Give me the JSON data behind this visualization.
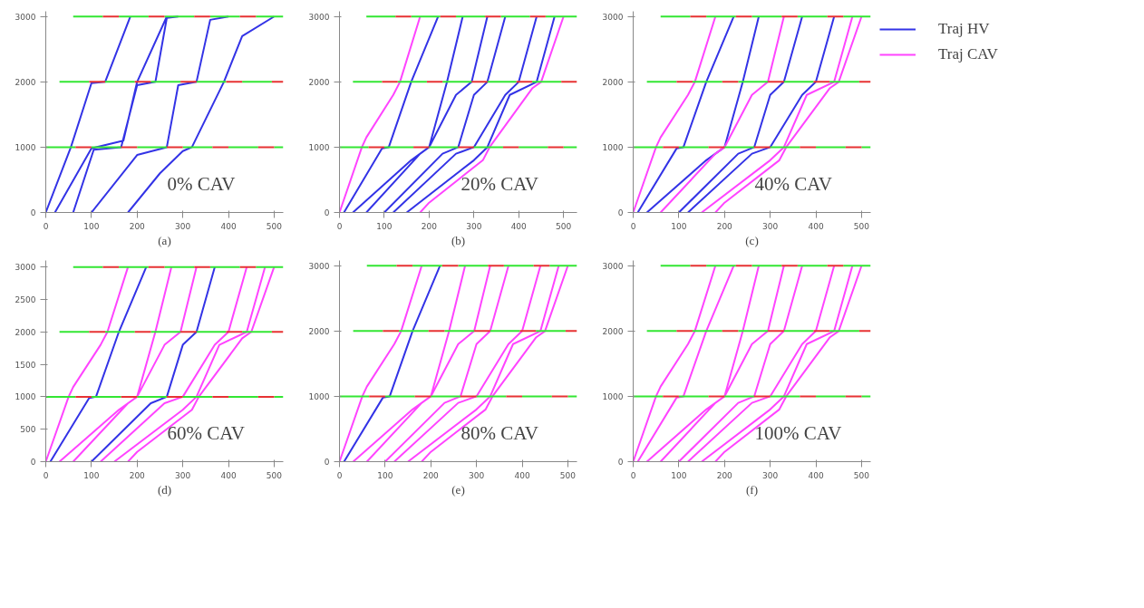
{
  "chart_data": [
    {
      "type": "line",
      "xlabel": "(a)",
      "annotations": [
        "0% CAV"
      ],
      "xlim": [
        0,
        520
      ],
      "ylim": [
        0,
        3080
      ],
      "xticks": [
        0,
        100,
        200,
        300,
        400,
        500
      ],
      "yticks": [
        0,
        1000,
        2000,
        3000
      ],
      "grid": false,
      "legend": false,
      "series": [
        {
          "color": "#3333e6",
          "x": [
            0,
            55,
            100,
            130,
            185,
            null,
            20,
            100,
            110,
            170,
            200,
            265,
            null,
            60,
            105,
            165,
            200,
            240,
            265,
            290,
            null,
            100,
            200,
            265,
            290,
            330,
            360,
            400,
            null,
            180,
            250,
            300,
            320,
            390,
            430,
            500
          ],
          "values": [
            0,
            1000,
            1980,
            2000,
            3000,
            null,
            0,
            980,
            1000,
            1100,
            2000,
            3000,
            null,
            0,
            960,
            1000,
            1950,
            2000,
            2980,
            3000,
            null,
            0,
            880,
            1000,
            1950,
            2000,
            2950,
            3000,
            null,
            0,
            600,
            940,
            1000,
            2000,
            2700,
            3000
          ]
        },
        {
          "color": "#33e633",
          "x": [
            0,
            65,
            null,
            100,
            165,
            null,
            200,
            265,
            null,
            300,
            365,
            null,
            400,
            465,
            null,
            500,
            520,
            null,
            30,
            95,
            null,
            130,
            195,
            null,
            230,
            295,
            null,
            330,
            395,
            null,
            430,
            495,
            null,
            60,
            125,
            null,
            160,
            225,
            null,
            260,
            325,
            null,
            360,
            425,
            null,
            460,
            520
          ],
          "values": [
            1000,
            1000,
            null,
            1000,
            1000,
            null,
            1000,
            1000,
            null,
            1000,
            1000,
            null,
            1000,
            1000,
            null,
            1000,
            1000,
            null,
            2000,
            2000,
            null,
            2000,
            2000,
            null,
            2000,
            2000,
            null,
            2000,
            2000,
            null,
            2000,
            2000,
            null,
            3000,
            3000,
            null,
            3000,
            3000,
            null,
            3000,
            3000,
            null,
            3000,
            3000,
            null,
            3000,
            3000
          ]
        },
        {
          "color": "#e63333",
          "x": [
            65,
            100,
            null,
            165,
            200,
            null,
            265,
            300,
            null,
            365,
            400,
            null,
            465,
            500,
            null,
            95,
            130,
            null,
            195,
            230,
            null,
            295,
            330,
            null,
            395,
            430,
            null,
            495,
            520,
            null,
            125,
            160,
            null,
            225,
            260,
            null,
            325,
            360,
            null,
            425,
            460
          ],
          "values": [
            1000,
            1000,
            null,
            1000,
            1000,
            null,
            1000,
            1000,
            null,
            1000,
            1000,
            null,
            1000,
            1000,
            null,
            2000,
            2000,
            null,
            2000,
            2000,
            null,
            2000,
            2000,
            null,
            2000,
            2000,
            null,
            2000,
            2000,
            null,
            3000,
            3000,
            null,
            3000,
            3000,
            null,
            3000,
            3000,
            null,
            3000,
            3000
          ]
        }
      ]
    },
    {
      "type": "line",
      "xlabel": "(b)",
      "annotations": [
        "20% CAV"
      ],
      "xlim": [
        0,
        530
      ],
      "ylim": [
        0,
        3080
      ],
      "xticks": [
        0,
        100,
        200,
        300,
        400,
        500
      ],
      "yticks": [
        0,
        1000,
        2000,
        3000
      ],
      "grid": false,
      "legend": false,
      "series": [
        {
          "color": "#3333e6",
          "x": [
            10,
            95,
            110,
            160,
            220,
            null,
            30,
            160,
            200,
            240,
            275,
            null,
            60,
            180,
            200,
            260,
            295,
            330,
            null,
            100,
            230,
            265,
            300,
            330,
            370,
            null,
            120,
            260,
            300,
            370,
            400,
            440,
            null,
            150,
            300,
            330,
            380,
            440,
            480
          ],
          "values": [
            0,
            980,
            1000,
            2000,
            3000,
            null,
            0,
            800,
            1000,
            2000,
            3000,
            null,
            0,
            900,
            1000,
            1800,
            2000,
            3000,
            null,
            0,
            900,
            1000,
            1800,
            2000,
            3000,
            null,
            0,
            900,
            1000,
            1800,
            2000,
            3000,
            null,
            0,
            800,
            1000,
            1800,
            2000,
            3000
          ]
        },
        {
          "color": "#ff44ff",
          "x": [
            0,
            50,
            60,
            120,
            135,
            180,
            null,
            180,
            200,
            320,
            335,
            430,
            450,
            500
          ],
          "values": [
            0,
            1000,
            1150,
            1800,
            2000,
            3000,
            null,
            0,
            150,
            800,
            1000,
            1900,
            2000,
            3000
          ]
        },
        {
          "color": "#33e633",
          "x": [
            0,
            65,
            null,
            100,
            165,
            null,
            200,
            265,
            null,
            300,
            365,
            null,
            400,
            465,
            null,
            500,
            530,
            null,
            30,
            95,
            null,
            130,
            195,
            null,
            230,
            295,
            null,
            330,
            395,
            null,
            430,
            495,
            null,
            60,
            125,
            null,
            160,
            225,
            null,
            260,
            325,
            null,
            360,
            425,
            null,
            460,
            530
          ],
          "values": [
            1000,
            1000,
            null,
            1000,
            1000,
            null,
            1000,
            1000,
            null,
            1000,
            1000,
            null,
            1000,
            1000,
            null,
            1000,
            1000,
            null,
            2000,
            2000,
            null,
            2000,
            2000,
            null,
            2000,
            2000,
            null,
            2000,
            2000,
            null,
            2000,
            2000,
            null,
            3000,
            3000,
            null,
            3000,
            3000,
            null,
            3000,
            3000,
            null,
            3000,
            3000,
            null,
            3000,
            3000
          ]
        },
        {
          "color": "#e63333",
          "x": [
            65,
            100,
            null,
            165,
            200,
            null,
            265,
            300,
            null,
            365,
            400,
            null,
            465,
            500,
            null,
            95,
            130,
            null,
            195,
            230,
            null,
            295,
            330,
            null,
            395,
            430,
            null,
            495,
            530,
            null,
            125,
            160,
            null,
            225,
            260,
            null,
            325,
            360,
            null,
            425,
            460
          ],
          "values": [
            1000,
            1000,
            null,
            1000,
            1000,
            null,
            1000,
            1000,
            null,
            1000,
            1000,
            null,
            1000,
            1000,
            null,
            2000,
            2000,
            null,
            2000,
            2000,
            null,
            2000,
            2000,
            null,
            2000,
            2000,
            null,
            2000,
            2000,
            null,
            3000,
            3000,
            null,
            3000,
            3000,
            null,
            3000,
            3000,
            null,
            3000,
            3000
          ]
        }
      ]
    },
    {
      "type": "line",
      "xlabel": "(c)",
      "annotations": [
        "40% CAV"
      ],
      "xlim": [
        0,
        520
      ],
      "ylim": [
        0,
        3080
      ],
      "xticks": [
        0,
        100,
        200,
        300,
        400,
        500
      ],
      "yticks": [
        0,
        1000,
        2000,
        3000
      ],
      "grid": false,
      "legend": "right",
      "series": [
        {
          "name": "Traj HV",
          "color": "#3333e6",
          "x": [
            10,
            95,
            110,
            160,
            220,
            null,
            30,
            160,
            200,
            240,
            275,
            null,
            100,
            230,
            265,
            300,
            330,
            370,
            null,
            120,
            260,
            300,
            370,
            400,
            440
          ],
          "values": [
            0,
            980,
            1000,
            2000,
            3000,
            null,
            0,
            800,
            1000,
            2000,
            3000,
            null,
            0,
            900,
            1000,
            1800,
            2000,
            3000,
            null,
            0,
            900,
            1000,
            1800,
            2000,
            3000
          ]
        },
        {
          "name": "Traj CAV",
          "color": "#ff44ff",
          "x": [
            0,
            50,
            60,
            120,
            135,
            180,
            null,
            60,
            180,
            200,
            260,
            295,
            330,
            null,
            150,
            300,
            330,
            380,
            440,
            480,
            null,
            180,
            200,
            320,
            335,
            430,
            450,
            500
          ],
          "values": [
            0,
            1000,
            1150,
            1800,
            2000,
            3000,
            null,
            0,
            900,
            1000,
            1800,
            2000,
            3000,
            null,
            0,
            800,
            1000,
            1800,
            2000,
            3000,
            null,
            0,
            150,
            800,
            1000,
            1900,
            2000,
            3000
          ]
        },
        {
          "color": "#33e633",
          "x": [
            0,
            65,
            null,
            100,
            165,
            null,
            200,
            265,
            null,
            300,
            365,
            null,
            400,
            465,
            null,
            500,
            520,
            null,
            30,
            95,
            null,
            130,
            195,
            null,
            230,
            295,
            null,
            330,
            395,
            null,
            430,
            495,
            null,
            60,
            125,
            null,
            160,
            225,
            null,
            260,
            325,
            null,
            360,
            425,
            null,
            460,
            520
          ],
          "values": [
            1000,
            1000,
            null,
            1000,
            1000,
            null,
            1000,
            1000,
            null,
            1000,
            1000,
            null,
            1000,
            1000,
            null,
            1000,
            1000,
            null,
            2000,
            2000,
            null,
            2000,
            2000,
            null,
            2000,
            2000,
            null,
            2000,
            2000,
            null,
            2000,
            2000,
            null,
            3000,
            3000,
            null,
            3000,
            3000,
            null,
            3000,
            3000,
            null,
            3000,
            3000,
            null,
            3000,
            3000
          ]
        },
        {
          "color": "#e63333",
          "x": [
            65,
            100,
            null,
            165,
            200,
            null,
            265,
            300,
            null,
            365,
            400,
            null,
            465,
            500,
            null,
            95,
            130,
            null,
            195,
            230,
            null,
            295,
            330,
            null,
            395,
            430,
            null,
            495,
            520,
            null,
            125,
            160,
            null,
            225,
            260,
            null,
            325,
            360,
            null,
            425,
            460
          ],
          "values": [
            1000,
            1000,
            null,
            1000,
            1000,
            null,
            1000,
            1000,
            null,
            1000,
            1000,
            null,
            1000,
            1000,
            null,
            2000,
            2000,
            null,
            2000,
            2000,
            null,
            2000,
            2000,
            null,
            2000,
            2000,
            null,
            2000,
            2000,
            null,
            3000,
            3000,
            null,
            3000,
            3000,
            null,
            3000,
            3000,
            null,
            3000,
            3000
          ]
        }
      ]
    },
    {
      "type": "line",
      "xlabel": "(d)",
      "annotations": [
        "60% CAV"
      ],
      "xlim": [
        0,
        520
      ],
      "ylim": [
        0,
        3100
      ],
      "xticks": [
        0,
        100,
        200,
        300,
        400,
        500
      ],
      "yticks": [
        0,
        500,
        1000,
        1500,
        2000,
        2500,
        3000
      ],
      "grid": false,
      "legend": false,
      "series": [
        {
          "color": "#3333e6",
          "x": [
            10,
            95,
            110,
            160,
            220,
            null,
            100,
            230,
            265,
            300,
            330,
            370
          ],
          "values": [
            0,
            980,
            1000,
            2000,
            3000,
            null,
            0,
            900,
            1000,
            1800,
            2000,
            3000
          ]
        },
        {
          "color": "#ff44ff",
          "x": [
            0,
            50,
            60,
            120,
            135,
            180,
            null,
            30,
            160,
            200,
            240,
            275,
            null,
            60,
            180,
            200,
            260,
            295,
            330,
            null,
            120,
            260,
            300,
            370,
            400,
            440,
            null,
            150,
            300,
            330,
            380,
            440,
            480,
            null,
            180,
            200,
            320,
            335,
            430,
            450,
            500
          ],
          "values": [
            0,
            1000,
            1150,
            1800,
            2000,
            3000,
            null,
            0,
            800,
            1000,
            2000,
            3000,
            null,
            0,
            900,
            1000,
            1800,
            2000,
            3000,
            null,
            0,
            900,
            1000,
            1800,
            2000,
            3000,
            null,
            0,
            800,
            1000,
            1800,
            2000,
            3000,
            null,
            0,
            150,
            800,
            1000,
            1900,
            2000,
            3000
          ]
        },
        {
          "color": "#33e633",
          "x": [
            0,
            65,
            null,
            100,
            165,
            null,
            200,
            265,
            null,
            300,
            365,
            null,
            400,
            465,
            null,
            500,
            520,
            null,
            30,
            95,
            null,
            130,
            195,
            null,
            230,
            295,
            null,
            330,
            395,
            null,
            430,
            495,
            null,
            60,
            125,
            null,
            160,
            225,
            null,
            260,
            325,
            null,
            360,
            425,
            null,
            460,
            520
          ],
          "values": [
            1000,
            1000,
            null,
            1000,
            1000,
            null,
            1000,
            1000,
            null,
            1000,
            1000,
            null,
            1000,
            1000,
            null,
            1000,
            1000,
            null,
            2000,
            2000,
            null,
            2000,
            2000,
            null,
            2000,
            2000,
            null,
            2000,
            2000,
            null,
            2000,
            2000,
            null,
            3000,
            3000,
            null,
            3000,
            3000,
            null,
            3000,
            3000,
            null,
            3000,
            3000,
            null,
            3000,
            3000
          ]
        },
        {
          "color": "#e63333",
          "x": [
            65,
            100,
            null,
            165,
            200,
            null,
            265,
            300,
            null,
            365,
            400,
            null,
            465,
            500,
            null,
            95,
            130,
            null,
            195,
            230,
            null,
            295,
            330,
            null,
            395,
            430,
            null,
            495,
            520,
            null,
            125,
            160,
            null,
            225,
            260,
            null,
            325,
            360,
            null,
            425,
            460
          ],
          "values": [
            1000,
            1000,
            null,
            1000,
            1000,
            null,
            1000,
            1000,
            null,
            1000,
            1000,
            null,
            1000,
            1000,
            null,
            2000,
            2000,
            null,
            2000,
            2000,
            null,
            2000,
            2000,
            null,
            2000,
            2000,
            null,
            2000,
            2000,
            null,
            3000,
            3000,
            null,
            3000,
            3000,
            null,
            3000,
            3000,
            null,
            3000,
            3000
          ]
        }
      ]
    },
    {
      "type": "line",
      "xlabel": "(e)",
      "annotations": [
        "80% CAV"
      ],
      "xlim": [
        0,
        520
      ],
      "ylim": [
        0,
        3080
      ],
      "xticks": [
        0,
        100,
        200,
        300,
        400,
        500
      ],
      "yticks": [
        0,
        1000,
        2000,
        3000
      ],
      "grid": false,
      "legend": false,
      "series": [
        {
          "color": "#3333e6",
          "x": [
            10,
            95,
            110,
            160,
            220
          ],
          "values": [
            0,
            980,
            1000,
            2000,
            3000
          ]
        },
        {
          "color": "#ff44ff",
          "x": [
            0,
            50,
            60,
            120,
            135,
            180,
            null,
            30,
            160,
            200,
            240,
            275,
            null,
            60,
            180,
            200,
            260,
            295,
            330,
            null,
            100,
            230,
            265,
            300,
            330,
            370,
            null,
            120,
            260,
            300,
            370,
            400,
            440,
            null,
            150,
            300,
            330,
            380,
            440,
            480,
            null,
            180,
            200,
            320,
            335,
            430,
            450,
            500
          ],
          "values": [
            0,
            1000,
            1150,
            1800,
            2000,
            3000,
            null,
            0,
            800,
            1000,
            2000,
            3000,
            null,
            0,
            900,
            1000,
            1800,
            2000,
            3000,
            null,
            0,
            900,
            1000,
            1800,
            2000,
            3000,
            null,
            0,
            900,
            1000,
            1800,
            2000,
            3000,
            null,
            0,
            800,
            1000,
            1800,
            2000,
            3000,
            null,
            0,
            150,
            800,
            1000,
            1900,
            2000,
            3000
          ]
        },
        {
          "color": "#33e633",
          "x": [
            0,
            65,
            null,
            100,
            165,
            null,
            200,
            265,
            null,
            300,
            365,
            null,
            400,
            465,
            null,
            500,
            520,
            null,
            30,
            95,
            null,
            130,
            195,
            null,
            230,
            295,
            null,
            330,
            395,
            null,
            430,
            495,
            null,
            60,
            125,
            null,
            160,
            225,
            null,
            260,
            325,
            null,
            360,
            425,
            null,
            460,
            520
          ],
          "values": [
            1000,
            1000,
            null,
            1000,
            1000,
            null,
            1000,
            1000,
            null,
            1000,
            1000,
            null,
            1000,
            1000,
            null,
            1000,
            1000,
            null,
            2000,
            2000,
            null,
            2000,
            2000,
            null,
            2000,
            2000,
            null,
            2000,
            2000,
            null,
            2000,
            2000,
            null,
            3000,
            3000,
            null,
            3000,
            3000,
            null,
            3000,
            3000,
            null,
            3000,
            3000,
            null,
            3000,
            3000
          ]
        },
        {
          "color": "#e63333",
          "x": [
            65,
            100,
            null,
            165,
            200,
            null,
            265,
            300,
            null,
            365,
            400,
            null,
            465,
            500,
            null,
            95,
            130,
            null,
            195,
            230,
            null,
            295,
            330,
            null,
            395,
            430,
            null,
            495,
            520,
            null,
            125,
            160,
            null,
            225,
            260,
            null,
            325,
            360,
            null,
            425,
            460
          ],
          "values": [
            1000,
            1000,
            null,
            1000,
            1000,
            null,
            1000,
            1000,
            null,
            1000,
            1000,
            null,
            1000,
            1000,
            null,
            2000,
            2000,
            null,
            2000,
            2000,
            null,
            2000,
            2000,
            null,
            2000,
            2000,
            null,
            2000,
            2000,
            null,
            3000,
            3000,
            null,
            3000,
            3000,
            null,
            3000,
            3000,
            null,
            3000,
            3000
          ]
        }
      ]
    },
    {
      "type": "line",
      "xlabel": "(f)",
      "annotations": [
        "100% CAV"
      ],
      "xlim": [
        0,
        520
      ],
      "ylim": [
        0,
        3080
      ],
      "xticks": [
        0,
        100,
        200,
        300,
        400,
        500
      ],
      "yticks": [
        0,
        1000,
        2000,
        3000
      ],
      "grid": false,
      "legend": false,
      "series": [
        {
          "color": "#ff44ff",
          "x": [
            0,
            50,
            60,
            120,
            135,
            180,
            null,
            10,
            95,
            110,
            160,
            220,
            null,
            30,
            160,
            200,
            240,
            275,
            null,
            60,
            180,
            200,
            260,
            295,
            330,
            null,
            100,
            230,
            265,
            300,
            330,
            370,
            null,
            120,
            260,
            300,
            370,
            400,
            440,
            null,
            150,
            300,
            330,
            380,
            440,
            480,
            null,
            180,
            200,
            320,
            335,
            430,
            450,
            500
          ],
          "values": [
            0,
            1000,
            1150,
            1800,
            2000,
            3000,
            null,
            0,
            980,
            1000,
            2000,
            3000,
            null,
            0,
            800,
            1000,
            2000,
            3000,
            null,
            0,
            900,
            1000,
            1800,
            2000,
            3000,
            null,
            0,
            900,
            1000,
            1800,
            2000,
            3000,
            null,
            0,
            900,
            1000,
            1800,
            2000,
            3000,
            null,
            0,
            800,
            1000,
            1800,
            2000,
            3000,
            null,
            0,
            150,
            800,
            1000,
            1900,
            2000,
            3000
          ]
        },
        {
          "color": "#33e633",
          "x": [
            0,
            65,
            null,
            100,
            165,
            null,
            200,
            265,
            null,
            300,
            365,
            null,
            400,
            465,
            null,
            500,
            520,
            null,
            30,
            95,
            null,
            130,
            195,
            null,
            230,
            295,
            null,
            330,
            395,
            null,
            430,
            495,
            null,
            60,
            125,
            null,
            160,
            225,
            null,
            260,
            325,
            null,
            360,
            425,
            null,
            460,
            520
          ],
          "values": [
            1000,
            1000,
            null,
            1000,
            1000,
            null,
            1000,
            1000,
            null,
            1000,
            1000,
            null,
            1000,
            1000,
            null,
            1000,
            1000,
            null,
            2000,
            2000,
            null,
            2000,
            2000,
            null,
            2000,
            2000,
            null,
            2000,
            2000,
            null,
            2000,
            2000,
            null,
            3000,
            3000,
            null,
            3000,
            3000,
            null,
            3000,
            3000,
            null,
            3000,
            3000,
            null,
            3000,
            3000
          ]
        },
        {
          "color": "#e63333",
          "x": [
            65,
            100,
            null,
            165,
            200,
            null,
            265,
            300,
            null,
            365,
            400,
            null,
            465,
            500,
            null,
            95,
            130,
            null,
            195,
            230,
            null,
            295,
            330,
            null,
            395,
            430,
            null,
            495,
            520,
            null,
            125,
            160,
            null,
            225,
            260,
            null,
            325,
            360,
            null,
            425,
            460
          ],
          "values": [
            1000,
            1000,
            null,
            1000,
            1000,
            null,
            1000,
            1000,
            null,
            1000,
            1000,
            null,
            1000,
            1000,
            null,
            2000,
            2000,
            null,
            2000,
            2000,
            null,
            2000,
            2000,
            null,
            2000,
            2000,
            null,
            2000,
            2000,
            null,
            3000,
            3000,
            null,
            3000,
            3000,
            null,
            3000,
            3000,
            null,
            3000,
            3000
          ]
        }
      ]
    }
  ]
}
